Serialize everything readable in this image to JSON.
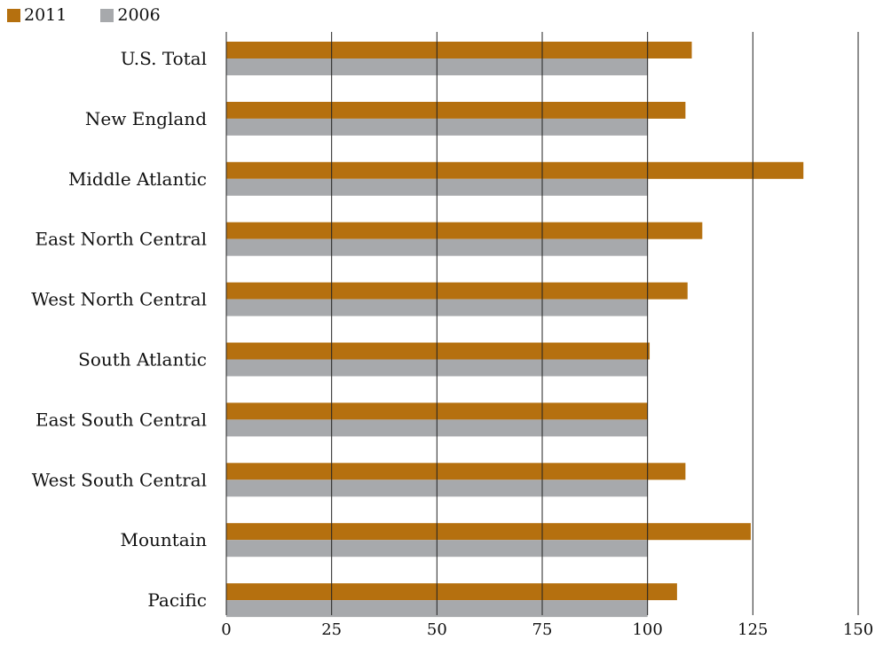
{
  "chart_data": {
    "type": "bar",
    "orientation": "horizontal",
    "categories": [
      "U.S. Total",
      "New England",
      "Middle Atlantic",
      "East North Central",
      "West North Central",
      "South Atlantic",
      "East South Central",
      "West South Central",
      "Mountain",
      "Pacific"
    ],
    "series": [
      {
        "name": "2011",
        "color": "#b5700f",
        "values": [
          110.5,
          109,
          137,
          113,
          109.5,
          100.5,
          100,
          109,
          124.5,
          107
        ]
      },
      {
        "name": "2006",
        "color": "#a7a9ac",
        "values": [
          100,
          100,
          100,
          100,
          100,
          100,
          100,
          100,
          100,
          100
        ]
      }
    ],
    "xlim": [
      0,
      150
    ],
    "xticks": [
      "0",
      "25",
      "50",
      "75",
      "100",
      "125",
      "150"
    ],
    "grid": "vertical",
    "legend": "top-left",
    "title": "",
    "xlabel": "",
    "ylabel": ""
  }
}
